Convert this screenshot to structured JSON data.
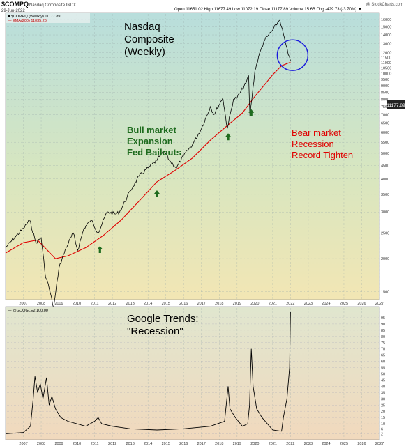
{
  "header": {
    "symbol": "$COMPQ",
    "name": "Nasdaq Composite INDX",
    "date": "29-Jun-2022",
    "quote": "Open 11651.02  High 11677.49  Low 11072.19  Close 11177.89  Volume 15.6B  Chg -429.73 (-3.70%) ▼",
    "watermark": "@ StockCharts.com"
  },
  "price_panel": {
    "legend_series": "■ $COMPQ (Weekly) 11177.89",
    "legend_ma": "— EMA(200) 11035.26",
    "price_tag": "11177.89",
    "title_lines": [
      "Nasdaq",
      "Composite",
      "(Weekly)"
    ],
    "bull_lines": [
      "Bull market",
      "Expansion",
      "Fed Bailouts"
    ],
    "bear_lines": [
      "Bear market",
      "Recession",
      "Record Tighten"
    ],
    "y_ticks": [
      1500,
      2000,
      2500,
      3000,
      3500,
      4000,
      4500,
      5000,
      5500,
      6000,
      6500,
      7000,
      7500,
      8000,
      8500,
      9000,
      9500,
      10000,
      10500,
      11000,
      11500,
      12000,
      13000,
      14000,
      15000,
      16000
    ],
    "arrow_years": [
      2011.8,
      2015.0,
      2019.0,
      2020.3
    ]
  },
  "trends_panel": {
    "legend": "— @GOOGLE2 100.00",
    "title_lines": [
      "Google Trends:",
      "\"Recession\""
    ],
    "y_ticks": [
      2,
      6,
      10,
      15,
      20,
      25,
      30,
      35,
      40,
      45,
      50,
      55,
      60,
      65,
      70,
      75,
      80,
      85,
      90,
      95
    ]
  },
  "x_ticks": [
    "2007",
    "2008",
    "2009",
    "2010",
    "2011",
    "2012",
    "2013",
    "2014",
    "2015",
    "2016",
    "2017",
    "2018",
    "2019",
    "2020",
    "2021",
    "2022",
    "2023",
    "2024",
    "2025",
    "2026",
    "2027"
  ],
  "colors": {
    "price_line": "#000000",
    "ema_line": "#e00000",
    "circle": "#1a1adc",
    "arrow": "#1e6b1e",
    "bull_text": "#1e6b1e",
    "bear_text": "#e00000"
  },
  "chart_data": [
    {
      "type": "line",
      "title": "Nasdaq Composite (Weekly)",
      "scale": "log",
      "ylim": [
        1400,
        17000
      ],
      "xlim": [
        2006.5,
        2027.5
      ],
      "series": [
        {
          "name": "$COMPQ (Weekly)",
          "x": [
            2006.5,
            2007.0,
            2007.5,
            2007.85,
            2008.2,
            2008.5,
            2008.75,
            2008.9,
            2009.2,
            2009.5,
            2009.9,
            2010.3,
            2010.55,
            2010.9,
            2011.3,
            2011.7,
            2012.2,
            2012.7,
            2012.9,
            2013.5,
            2014.0,
            2014.5,
            2015.0,
            2015.4,
            2015.7,
            2016.1,
            2016.5,
            2017.0,
            2017.5,
            2018.0,
            2018.2,
            2018.7,
            2018.95,
            2019.3,
            2019.5,
            2020.0,
            2020.15,
            2020.22,
            2020.5,
            2020.7,
            2021.0,
            2021.2,
            2021.5,
            2021.9,
            2022.0,
            2022.2,
            2022.37,
            2022.5
          ],
          "values": [
            2200,
            2400,
            2600,
            2800,
            2300,
            2400,
            1700,
            1600,
            1300,
            1850,
            2200,
            2500,
            2150,
            2600,
            2800,
            2500,
            3000,
            2950,
            3000,
            3600,
            4100,
            4400,
            4700,
            5100,
            4700,
            4400,
            4900,
            5400,
            6200,
            7500,
            7000,
            8100,
            6200,
            8000,
            8100,
            9200,
            9800,
            6900,
            10200,
            11500,
            13200,
            13800,
            14600,
            16000,
            15000,
            13200,
            11800,
            11177.89
          ]
        },
        {
          "name": "EMA(200)",
          "x": [
            2006.5,
            2007.5,
            2008.3,
            2009.3,
            2010.0,
            2011.0,
            2012.0,
            2013.0,
            2014.0,
            2015.0,
            2016.0,
            2017.0,
            2018.0,
            2019.0,
            2019.8,
            2020.5,
            2021.0,
            2021.5,
            2022.0,
            2022.5
          ],
          "values": [
            2100,
            2300,
            2350,
            2000,
            2050,
            2200,
            2450,
            2800,
            3300,
            3900,
            4300,
            4800,
            5600,
            6400,
            7100,
            8200,
            9000,
            9900,
            10700,
            11035.26
          ]
        }
      ]
    },
    {
      "type": "line",
      "title": "Google Trends: \"Recession\"",
      "ylim": [
        0,
        100
      ],
      "xlim": [
        2006.5,
        2027.5
      ],
      "series": [
        {
          "name": "@GOOGLE2",
          "x": [
            2006.5,
            2007.5,
            2007.9,
            2008.05,
            2008.15,
            2008.3,
            2008.45,
            2008.6,
            2008.8,
            2008.95,
            2009.1,
            2009.3,
            2009.6,
            2010.0,
            2010.5,
            2011.0,
            2011.5,
            2011.7,
            2011.9,
            2012.5,
            2013.5,
            2015.0,
            2016.5,
            2018.0,
            2018.8,
            2019.0,
            2019.1,
            2019.4,
            2019.8,
            2020.1,
            2020.2,
            2020.3,
            2020.4,
            2020.6,
            2020.9,
            2021.5,
            2022.0,
            2022.1,
            2022.3,
            2022.45,
            2022.5
          ],
          "values": [
            2,
            3,
            8,
            30,
            48,
            35,
            42,
            30,
            47,
            25,
            32,
            22,
            15,
            12,
            10,
            8,
            12,
            15,
            10,
            8,
            6,
            5,
            6,
            8,
            12,
            40,
            22,
            15,
            8,
            10,
            25,
            70,
            40,
            22,
            15,
            5,
            4,
            15,
            30,
            55,
            100
          ]
        }
      ]
    }
  ]
}
